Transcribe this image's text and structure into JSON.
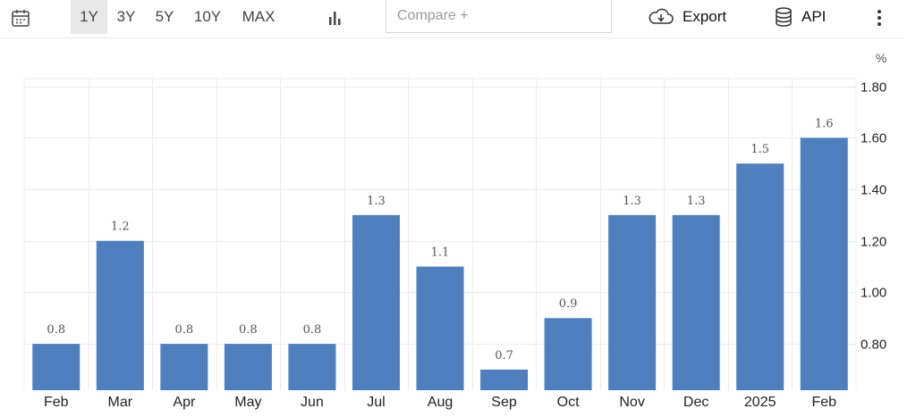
{
  "toolbar": {
    "icons": {
      "calendar": "calendar-icon",
      "chart_type": "bar-chart-icon",
      "export": "cloud-download-icon",
      "api": "database-icon",
      "more": "more-vertical-icon"
    },
    "ranges": [
      "1Y",
      "3Y",
      "5Y",
      "10Y",
      "MAX"
    ],
    "active_range": "1Y",
    "compare_placeholder": "Compare +",
    "export_label": "Export",
    "api_label": "API"
  },
  "colors": {
    "bar": "#4e7fbe",
    "grid": "#ececec",
    "active_range_bg": "#e8e8e8"
  },
  "chart_data": {
    "type": "bar",
    "unit": "%",
    "categories": [
      "Feb",
      "Mar",
      "Apr",
      "May",
      "Jun",
      "Jul",
      "Aug",
      "Sep",
      "Oct",
      "Nov",
      "Dec",
      "2025",
      "Feb"
    ],
    "values": [
      0.8,
      1.2,
      0.8,
      0.8,
      0.8,
      1.3,
      1.1,
      0.7,
      0.9,
      1.3,
      1.3,
      1.5,
      1.6
    ],
    "data_labels": [
      "0.8",
      "1.2",
      "0.8",
      "0.8",
      "0.8",
      "1.3",
      "1.1",
      "0.7",
      "0.9",
      "1.3",
      "1.3",
      "1.5",
      "1.6"
    ],
    "yticks": [
      0.8,
      1.0,
      1.2,
      1.4,
      1.6,
      1.8
    ],
    "ytick_labels": [
      "0.80",
      "1.00",
      "1.20",
      "1.40",
      "1.60",
      "1.80"
    ],
    "ylim": [
      0.62,
      1.8
    ],
    "y_axis_side": "right",
    "grid": true,
    "legend": "none",
    "title": "",
    "xlabel": "",
    "ylabel": ""
  }
}
